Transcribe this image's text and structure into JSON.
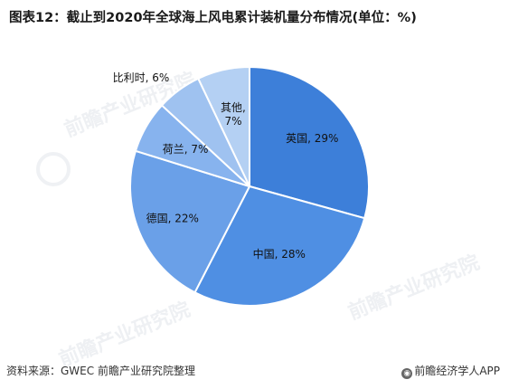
{
  "title": "图表12：截止到2020年全球海上风电累计装机量分布情况(单位：%)",
  "chart_data": {
    "type": "pie",
    "slices": [
      {
        "name": "英国",
        "value": 29,
        "label": "英国, 29%",
        "color": "#3d7fd9"
      },
      {
        "name": "中国",
        "value": 28,
        "label": "中国, 28%",
        "color": "#4f8fe3"
      },
      {
        "name": "德国",
        "value": 22,
        "label": "德国, 22%",
        "color": "#6aa0e8"
      },
      {
        "name": "荷兰",
        "value": 7,
        "label": "荷兰, 7%",
        "color": "#87b3ee"
      },
      {
        "name": "比利时",
        "value": 6,
        "label": "比利时, 6%",
        "color": "#9fc2f0"
      },
      {
        "name": "其他",
        "value": 7,
        "label": "其他,\n7%",
        "color": "#b4d0f3"
      }
    ]
  },
  "watermark": "前瞻产业研究院",
  "footer": {
    "source": "资料来源：GWEC  前瞻产业研究院整理",
    "credit_icon": "eye-icon",
    "credit": "前瞻经济学人APP"
  }
}
